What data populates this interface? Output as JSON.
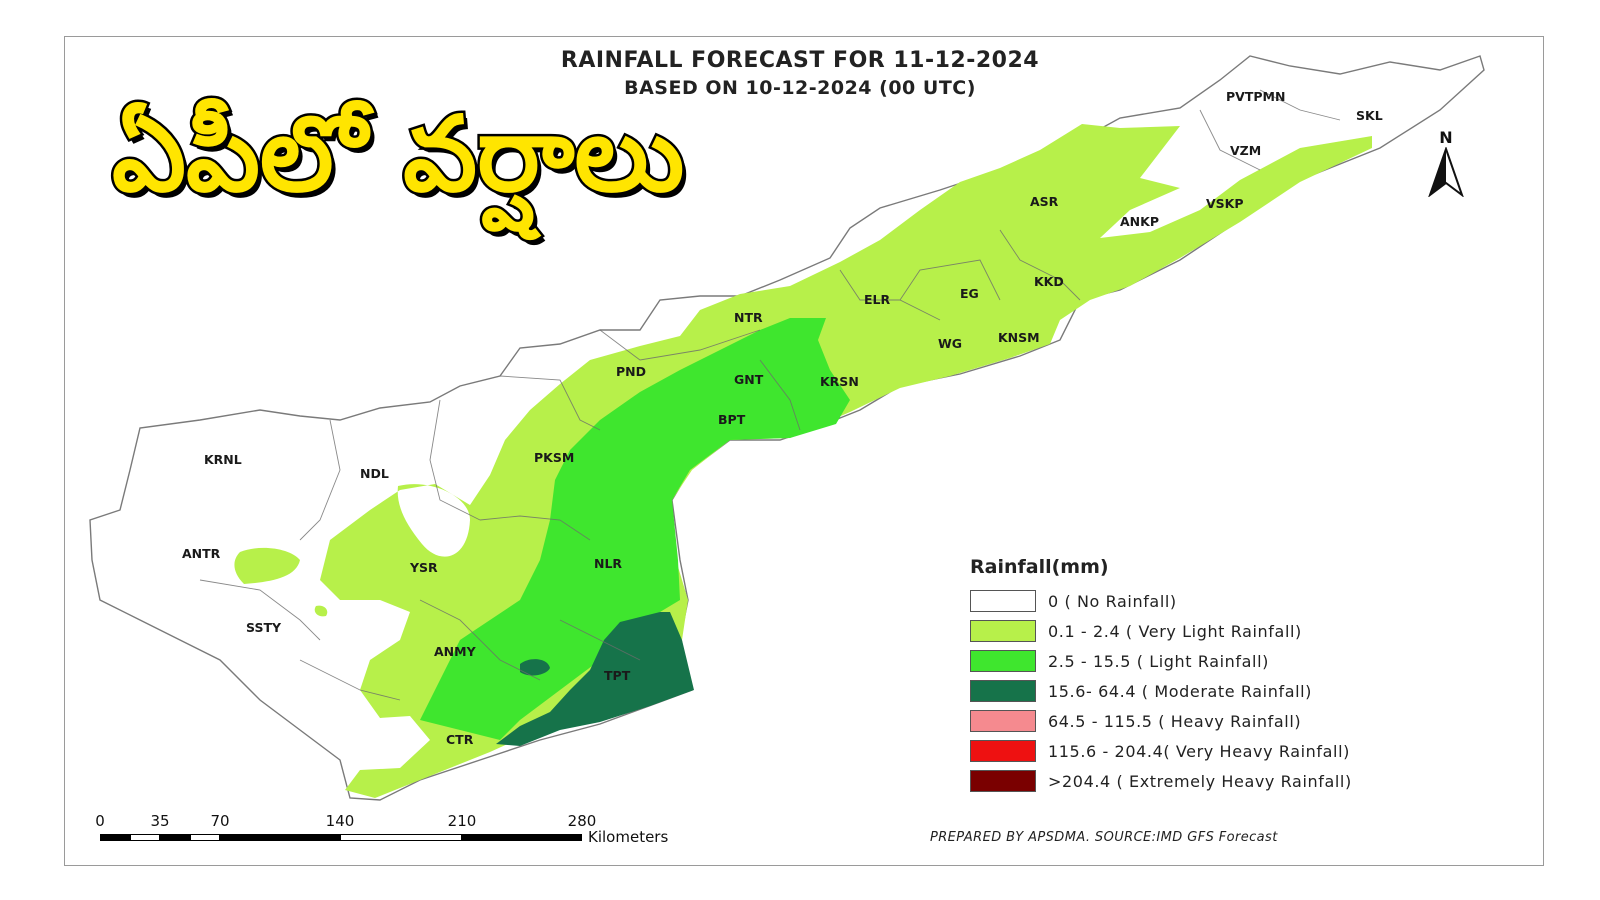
{
  "map": {
    "title": "RAINFALL FORECAST FOR 11-12-2024",
    "subtitle": "BASED ON 10-12-2024 (00 UTC)",
    "headline": "ఏపీలో వర్షాలు",
    "north_label": "N",
    "credit": "PREPARED BY APSDMA. SOURCE:IMD GFS Forecast",
    "districts": [
      "PVTPMN",
      "SKL",
      "VZM",
      "ASR",
      "ANKP",
      "VSKP",
      "KKD",
      "EG",
      "ELR",
      "NTR",
      "WG",
      "KNSM",
      "PND",
      "GNT",
      "KRSN",
      "BPT",
      "PKSM",
      "KRNL",
      "NDL",
      "ANTR",
      "YSR",
      "NLR",
      "SSTY",
      "ANMY",
      "TPT",
      "CTR"
    ]
  },
  "legend": {
    "title": "Rainfall(mm)",
    "items": [
      {
        "label": "0 ( No Rainfall)",
        "color": "#ffffff"
      },
      {
        "label": "0.1 - 2.4 ( Very Light Rainfall)",
        "color": "#b7f04a"
      },
      {
        "label": "2.5 - 15.5 ( Light Rainfall)",
        "color": "#3fe62e"
      },
      {
        "label": "15.6- 64.4 ( Moderate Rainfall)",
        "color": "#16734a"
      },
      {
        "label": "64.5 - 115.5 ( Heavy Rainfall)",
        "color": "#f58a8f"
      },
      {
        "label": "115.6 - 204.4( Very Heavy Rainfall)",
        "color": "#ee1111"
      },
      {
        "label": ">204.4 ( Extremely Heavy Rainfall)",
        "color": "#7a0000"
      }
    ]
  },
  "scale_bar": {
    "ticks": [
      "0",
      "35",
      "70",
      "140",
      "210",
      "280"
    ],
    "unit": "Kilometers"
  }
}
